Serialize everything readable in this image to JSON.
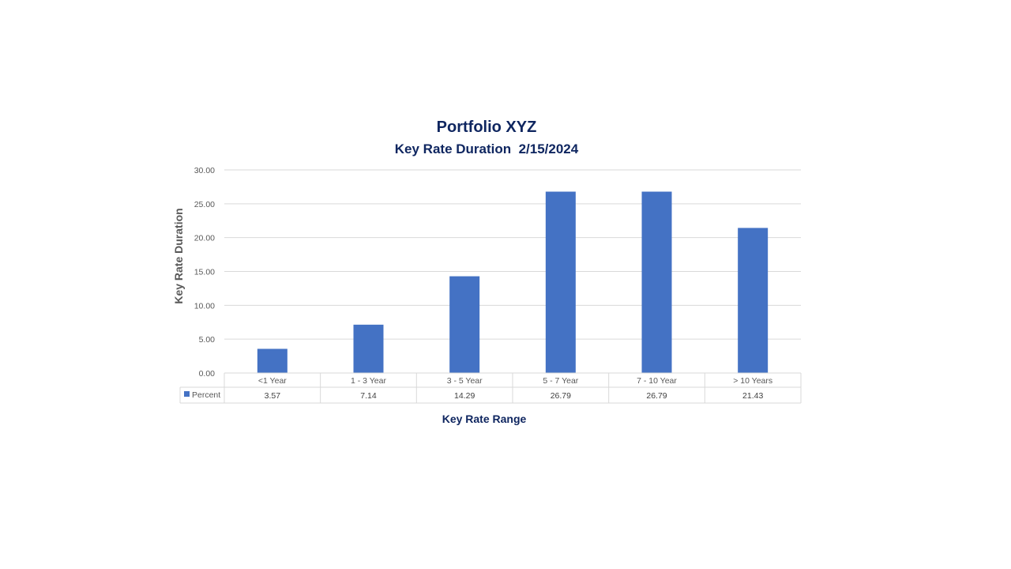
{
  "chart_data": {
    "type": "bar",
    "title": "Portfolio XYZ",
    "subtitle": "Key Rate Duration  2/15/2024",
    "xlabel": "Key Rate Range",
    "ylabel": "Key Rate Duration",
    "categories": [
      "<1 Year",
      "1 - 3 Year",
      "3 - 5 Year",
      "5 - 7 Year",
      "7 - 10 Year",
      "> 10 Years"
    ],
    "series": [
      {
        "name": "Percent",
        "values": [
          3.57,
          7.14,
          14.29,
          26.79,
          26.79,
          21.43
        ],
        "labels": [
          "3.57",
          "7.14",
          "14.29",
          "26.79",
          "26.79",
          "21.43"
        ],
        "color": "#4472c4"
      }
    ],
    "yticks": [
      "0.00",
      "5.00",
      "10.00",
      "15.00",
      "20.00",
      "25.00",
      "30.00"
    ],
    "ylim": [
      0,
      30
    ],
    "grid": true,
    "legend": "data-table"
  }
}
